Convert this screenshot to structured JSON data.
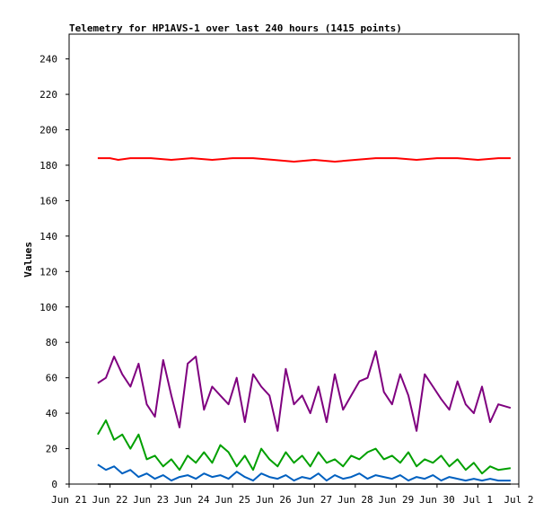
{
  "chart_data": {
    "type": "line",
    "title": "Telemetry for HP1AVS-1 over last 240 hours (1415 points)",
    "xlabel": "",
    "ylabel": "Values",
    "ylim": [
      0,
      254
    ],
    "yticks": [
      0,
      20,
      40,
      60,
      80,
      100,
      120,
      140,
      160,
      180,
      200,
      220,
      240
    ],
    "x_ticks": [
      {
        "label": "Jun 21",
        "day": 0
      },
      {
        "label": "Jun 22",
        "day": 1
      },
      {
        "label": "Jun 23",
        "day": 2
      },
      {
        "label": "Jun 24",
        "day": 3
      },
      {
        "label": "Jun 25",
        "day": 4
      },
      {
        "label": "Jun 26",
        "day": 5
      },
      {
        "label": "Jun 27",
        "day": 6
      },
      {
        "label": "Jun 28",
        "day": 7
      },
      {
        "label": "Jun 29",
        "day": 8
      },
      {
        "label": "Jun 30",
        "day": 9
      },
      {
        "label": "Jul 1",
        "day": 10
      },
      {
        "label": "Jul 2",
        "day": 11
      }
    ],
    "xlim": [
      0,
      11
    ],
    "grid": false,
    "series": [
      {
        "color": "#ff0000",
        "x": [
          0.7,
          1.0,
          1.2,
          1.5,
          2.0,
          2.5,
          3.0,
          3.5,
          4.0,
          4.5,
          5.0,
          5.5,
          6.0,
          6.5,
          7.0,
          7.5,
          8.0,
          8.5,
          9.0,
          9.5,
          10.0,
          10.5,
          10.8
        ],
        "y": [
          184,
          184,
          183,
          184,
          184,
          183,
          184,
          183,
          184,
          184,
          183,
          182,
          183,
          182,
          183,
          184,
          184,
          183,
          184,
          184,
          183,
          184,
          184
        ]
      },
      {
        "color": "#7f007f",
        "x": [
          0.7,
          0.9,
          1.1,
          1.3,
          1.5,
          1.7,
          1.9,
          2.1,
          2.3,
          2.5,
          2.7,
          2.9,
          3.1,
          3.3,
          3.5,
          3.7,
          3.9,
          4.1,
          4.3,
          4.5,
          4.7,
          4.9,
          5.1,
          5.3,
          5.5,
          5.7,
          5.9,
          6.1,
          6.3,
          6.5,
          6.7,
          6.9,
          7.1,
          7.3,
          7.5,
          7.7,
          7.9,
          8.1,
          8.3,
          8.5,
          8.7,
          8.9,
          9.1,
          9.3,
          9.5,
          9.7,
          9.9,
          10.1,
          10.3,
          10.5,
          10.8
        ],
        "y": [
          57,
          60,
          72,
          62,
          55,
          68,
          45,
          38,
          70,
          50,
          32,
          68,
          72,
          42,
          55,
          50,
          45,
          60,
          35,
          62,
          55,
          50,
          30,
          65,
          45,
          50,
          40,
          55,
          35,
          62,
          42,
          50,
          58,
          60,
          75,
          52,
          45,
          62,
          50,
          30,
          62,
          55,
          48,
          42,
          58,
          45,
          40,
          55,
          35,
          45,
          43
        ]
      },
      {
        "color": "#00a000",
        "x": [
          0.7,
          0.9,
          1.1,
          1.3,
          1.5,
          1.7,
          1.9,
          2.1,
          2.3,
          2.5,
          2.7,
          2.9,
          3.1,
          3.3,
          3.5,
          3.7,
          3.9,
          4.1,
          4.3,
          4.5,
          4.7,
          4.9,
          5.1,
          5.3,
          5.5,
          5.7,
          5.9,
          6.1,
          6.3,
          6.5,
          6.7,
          6.9,
          7.1,
          7.3,
          7.5,
          7.7,
          7.9,
          8.1,
          8.3,
          8.5,
          8.7,
          8.9,
          9.1,
          9.3,
          9.5,
          9.7,
          9.9,
          10.1,
          10.3,
          10.5,
          10.8
        ],
        "y": [
          28,
          36,
          25,
          28,
          20,
          28,
          14,
          16,
          10,
          14,
          8,
          16,
          12,
          18,
          12,
          22,
          18,
          10,
          16,
          8,
          20,
          14,
          10,
          18,
          12,
          16,
          10,
          18,
          12,
          14,
          10,
          16,
          14,
          18,
          20,
          14,
          16,
          12,
          18,
          10,
          14,
          12,
          16,
          10,
          14,
          8,
          12,
          6,
          10,
          8,
          9
        ]
      },
      {
        "color": "#0060c0",
        "x": [
          0.7,
          0.9,
          1.1,
          1.3,
          1.5,
          1.7,
          1.9,
          2.1,
          2.3,
          2.5,
          2.7,
          2.9,
          3.1,
          3.3,
          3.5,
          3.7,
          3.9,
          4.1,
          4.3,
          4.5,
          4.7,
          4.9,
          5.1,
          5.3,
          5.5,
          5.7,
          5.9,
          6.1,
          6.3,
          6.5,
          6.7,
          6.9,
          7.1,
          7.3,
          7.5,
          7.7,
          7.9,
          8.1,
          8.3,
          8.5,
          8.7,
          8.9,
          9.1,
          9.3,
          9.5,
          9.7,
          9.9,
          10.1,
          10.3,
          10.5,
          10.8
        ],
        "y": [
          11,
          8,
          10,
          6,
          8,
          4,
          6,
          3,
          5,
          2,
          4,
          5,
          3,
          6,
          4,
          5,
          3,
          7,
          4,
          2,
          6,
          4,
          3,
          5,
          2,
          4,
          3,
          6,
          2,
          5,
          3,
          4,
          6,
          3,
          5,
          4,
          3,
          5,
          2,
          4,
          3,
          5,
          2,
          4,
          3,
          2,
          3,
          2,
          3,
          2,
          2
        ]
      },
      {
        "color": "#000000",
        "x": [
          0.7,
          10.8
        ],
        "y": [
          0,
          0
        ]
      }
    ]
  }
}
